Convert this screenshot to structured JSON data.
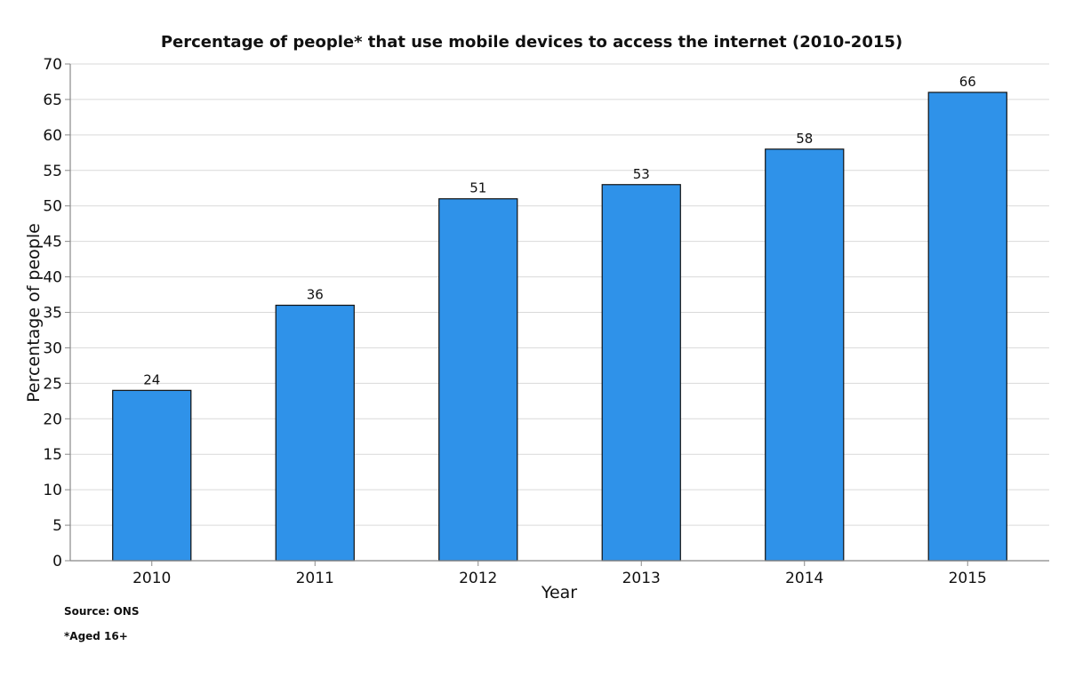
{
  "chart_data": {
    "type": "bar",
    "title": "Percentage of people* that use mobile devices to access the internet (2010-2015)",
    "xlabel": "Year",
    "ylabel": "Percentage of people",
    "categories": [
      "2010",
      "2011",
      "2012",
      "2013",
      "2014",
      "2015"
    ],
    "values": [
      24,
      36,
      51,
      53,
      58,
      66
    ],
    "ylim": [
      0,
      70
    ],
    "yticks": [
      0,
      5,
      10,
      15,
      20,
      25,
      30,
      35,
      40,
      45,
      50,
      55,
      60,
      65,
      70
    ],
    "grid": true,
    "legend": "none",
    "bar_color": "#2f92e9",
    "data_labels": true
  },
  "notes": {
    "source": "Source: ONS",
    "footnote": "*Aged 16+"
  }
}
